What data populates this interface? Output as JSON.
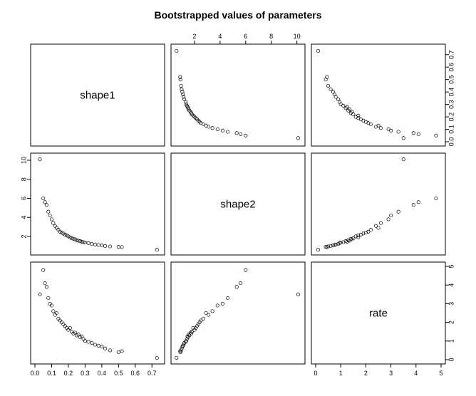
{
  "chart_data": {
    "type": "scatter",
    "title": "Bootstrapped values of parameters",
    "variables": [
      "shape1",
      "shape2",
      "rate"
    ],
    "ranges": {
      "shape1": [
        0.0,
        0.75
      ],
      "shape2": [
        0.5,
        10.3
      ],
      "rate": [
        0.0,
        5.0
      ]
    },
    "ticks": {
      "shape1": [
        "0.0",
        "0.1",
        "0.2",
        "0.3",
        "0.4",
        "0.5",
        "0.6",
        "0.7"
      ],
      "shape2": [
        "2",
        "4",
        "6",
        "8",
        "10"
      ],
      "rate": [
        "0",
        "1",
        "2",
        "3",
        "4",
        "5"
      ]
    },
    "tick_values": {
      "shape1": [
        0.0,
        0.1,
        0.2,
        0.3,
        0.4,
        0.5,
        0.6,
        0.7
      ],
      "shape2": [
        2,
        4,
        6,
        8,
        10
      ],
      "rate": [
        0,
        1,
        2,
        3,
        4,
        5
      ]
    },
    "grid": false,
    "legend": "none",
    "points_estimated": true,
    "points": [
      {
        "shape1": 0.03,
        "shape2": 10.1,
        "rate": 3.5
      },
      {
        "shape1": 0.05,
        "shape2": 6.0,
        "rate": 4.8
      },
      {
        "shape1": 0.06,
        "shape2": 5.6,
        "rate": 4.1
      },
      {
        "shape1": 0.07,
        "shape2": 5.3,
        "rate": 3.9
      },
      {
        "shape1": 0.08,
        "shape2": 4.6,
        "rate": 3.3
      },
      {
        "shape1": 0.09,
        "shape2": 4.2,
        "rate": 3.0
      },
      {
        "shape1": 0.1,
        "shape2": 3.8,
        "rate": 2.9
      },
      {
        "shape1": 0.11,
        "shape2": 3.4,
        "rate": 2.6
      },
      {
        "shape1": 0.12,
        "shape2": 3.1,
        "rate": 2.4
      },
      {
        "shape1": 0.13,
        "shape2": 2.9,
        "rate": 2.5
      },
      {
        "shape1": 0.14,
        "shape2": 2.7,
        "rate": 2.2
      },
      {
        "shape1": 0.15,
        "shape2": 2.5,
        "rate": 2.1
      },
      {
        "shape1": 0.16,
        "shape2": 2.4,
        "rate": 2.0
      },
      {
        "shape1": 0.17,
        "shape2": 2.3,
        "rate": 1.9
      },
      {
        "shape1": 0.18,
        "shape2": 2.2,
        "rate": 1.8
      },
      {
        "shape1": 0.19,
        "shape2": 2.1,
        "rate": 1.7
      },
      {
        "shape1": 0.2,
        "shape2": 2.0,
        "rate": 1.6
      },
      {
        "shape1": 0.21,
        "shape2": 1.9,
        "rate": 1.7
      },
      {
        "shape1": 0.22,
        "shape2": 1.8,
        "rate": 1.5
      },
      {
        "shape1": 0.23,
        "shape2": 1.75,
        "rate": 1.4
      },
      {
        "shape1": 0.24,
        "shape2": 1.7,
        "rate": 1.45
      },
      {
        "shape1": 0.25,
        "shape2": 1.6,
        "rate": 1.3
      },
      {
        "shape1": 0.26,
        "shape2": 1.55,
        "rate": 1.35
      },
      {
        "shape1": 0.27,
        "shape2": 1.5,
        "rate": 1.2
      },
      {
        "shape1": 0.28,
        "shape2": 1.45,
        "rate": 1.25
      },
      {
        "shape1": 0.29,
        "shape2": 1.4,
        "rate": 1.1
      },
      {
        "shape1": 0.3,
        "shape2": 1.35,
        "rate": 1.0
      },
      {
        "shape1": 0.32,
        "shape2": 1.3,
        "rate": 0.95
      },
      {
        "shape1": 0.34,
        "shape2": 1.2,
        "rate": 0.9
      },
      {
        "shape1": 0.36,
        "shape2": 1.15,
        "rate": 0.8
      },
      {
        "shape1": 0.38,
        "shape2": 1.1,
        "rate": 0.75
      },
      {
        "shape1": 0.4,
        "shape2": 1.05,
        "rate": 0.7
      },
      {
        "shape1": 0.42,
        "shape2": 1.0,
        "rate": 0.6
      },
      {
        "shape1": 0.45,
        "shape2": 0.95,
        "rate": 0.5
      },
      {
        "shape1": 0.5,
        "shape2": 0.9,
        "rate": 0.4
      },
      {
        "shape1": 0.52,
        "shape2": 0.88,
        "rate": 0.45
      },
      {
        "shape1": 0.73,
        "shape2": 0.6,
        "rate": 0.1
      }
    ]
  }
}
